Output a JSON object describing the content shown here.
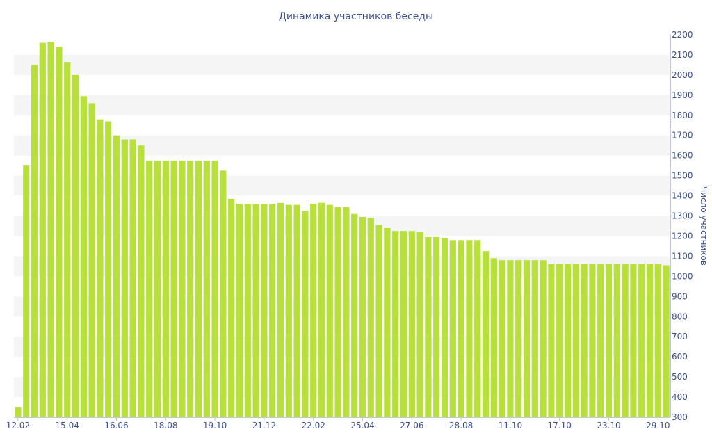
{
  "chart_data": {
    "type": "bar",
    "title": "Динамика участников беседы",
    "xlabel": "",
    "ylabel": "Число участников",
    "y_axis_position": "right",
    "ylim": [
      300,
      2200
    ],
    "y_ticks": [
      300,
      400,
      500,
      600,
      700,
      800,
      900,
      1000,
      1100,
      1200,
      1300,
      1400,
      1500,
      1600,
      1700,
      1800,
      1900,
      2000,
      2100,
      2200
    ],
    "grid": "alternating horizontal bands",
    "bar_color": "#b8e03a",
    "band_color": "#f5f5f5",
    "text_color": "#3b4f8a",
    "x_tick_labels": [
      {
        "label": "12.02",
        "index": 0
      },
      {
        "label": "15.04",
        "index": 6
      },
      {
        "label": "16.06",
        "index": 12
      },
      {
        "label": "18.08",
        "index": 18
      },
      {
        "label": "19.10",
        "index": 24
      },
      {
        "label": "21.12",
        "index": 30
      },
      {
        "label": "22.02",
        "index": 36
      },
      {
        "label": "25.04",
        "index": 42
      },
      {
        "label": "27.06",
        "index": 48
      },
      {
        "label": "28.08",
        "index": 54
      },
      {
        "label": "11.10",
        "index": 60
      },
      {
        "label": "17.10",
        "index": 66
      },
      {
        "label": "23.10",
        "index": 72
      },
      {
        "label": "29.10",
        "index": 78
      }
    ],
    "values": [
      350,
      1550,
      2050,
      2160,
      2165,
      2140,
      2065,
      2000,
      1895,
      1860,
      1780,
      1770,
      1700,
      1680,
      1680,
      1650,
      1575,
      1575,
      1575,
      1575,
      1575,
      1575,
      1575,
      1575,
      1575,
      1525,
      1385,
      1360,
      1360,
      1360,
      1360,
      1360,
      1365,
      1355,
      1355,
      1325,
      1360,
      1365,
      1355,
      1345,
      1345,
      1310,
      1295,
      1290,
      1255,
      1240,
      1225,
      1225,
      1225,
      1220,
      1195,
      1195,
      1190,
      1180,
      1180,
      1180,
      1180,
      1125,
      1090,
      1080,
      1080,
      1080,
      1080,
      1080,
      1080,
      1060,
      1060,
      1060,
      1060,
      1060,
      1060,
      1060,
      1060,
      1060,
      1060,
      1060,
      1060,
      1060,
      1060,
      1055
    ]
  }
}
